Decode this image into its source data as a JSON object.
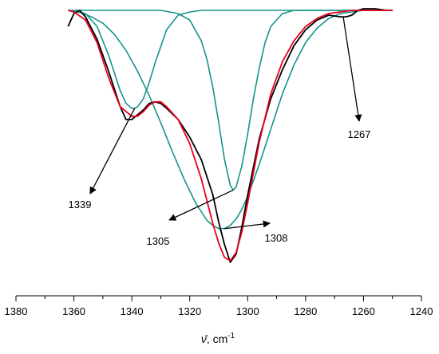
{
  "chart_data": {
    "type": "line",
    "title": "",
    "xlabel": "ν̄, cm⁻¹",
    "xlabel_symbol": "ν̄",
    "xlabel_unit": ", cm",
    "xlabel_exp": "-1",
    "ylabel": "",
    "xlim": [
      1380,
      1240
    ],
    "x_reversed": true,
    "y_axis_visible": false,
    "grid": false,
    "xticks": [
      1380,
      1360,
      1340,
      1320,
      1300,
      1280,
      1260,
      1240
    ],
    "colors": {
      "experimental": "#000000",
      "fit": "#e8001c",
      "components": "#15938a"
    },
    "series": [
      {
        "role": "experimental",
        "x": [
          1362,
          1360,
          1358,
          1356,
          1352,
          1348,
          1344,
          1342,
          1340,
          1338,
          1336,
          1334,
          1332,
          1330,
          1328,
          1324,
          1320,
          1316,
          1312,
          1310,
          1308,
          1306,
          1304,
          1302,
          1300,
          1296,
          1292,
          1288,
          1284,
          1280,
          1276,
          1272,
          1268,
          1266,
          1264,
          1262,
          1260,
          1256,
          1252,
          1250
        ],
        "values": [
          -0.1,
          -0.02,
          0.0,
          -0.04,
          -0.18,
          -0.38,
          -0.6,
          -0.68,
          -0.68,
          -0.65,
          -0.62,
          -0.58,
          -0.57,
          -0.58,
          -0.61,
          -0.68,
          -0.79,
          -0.93,
          -1.15,
          -1.32,
          -1.46,
          -1.57,
          -1.52,
          -1.35,
          -1.15,
          -0.8,
          -0.55,
          -0.37,
          -0.22,
          -0.12,
          -0.06,
          -0.03,
          -0.04,
          -0.04,
          -0.03,
          0.0,
          0.01,
          0.01,
          0.0,
          0.0
        ]
      },
      {
        "role": "fit",
        "x": [
          1362,
          1360,
          1356,
          1352,
          1348,
          1344,
          1340,
          1338,
          1336,
          1334,
          1332,
          1330,
          1328,
          1324,
          1320,
          1316,
          1312,
          1310,
          1308,
          1306,
          1304,
          1302,
          1300,
          1296,
          1292,
          1288,
          1284,
          1280,
          1276,
          1272,
          1268,
          1264,
          1260,
          1256,
          1250
        ],
        "values": [
          0.0,
          -0.01,
          -0.06,
          -0.2,
          -0.42,
          -0.6,
          -0.66,
          -0.66,
          -0.63,
          -0.59,
          -0.57,
          -0.57,
          -0.6,
          -0.68,
          -0.83,
          -1.05,
          -1.33,
          -1.45,
          -1.54,
          -1.56,
          -1.51,
          -1.38,
          -1.2,
          -0.82,
          -0.52,
          -0.32,
          -0.19,
          -0.1,
          -0.05,
          -0.02,
          -0.01,
          0.0,
          0.0,
          0.0,
          0.0
        ]
      },
      {
        "role": "component",
        "peak": 1339,
        "x": [
          1362,
          1356,
          1352,
          1348,
          1344,
          1342,
          1340,
          1339,
          1338,
          1336,
          1334,
          1332,
          1328,
          1324,
          1320,
          1316,
          1310,
          1300,
          1290,
          1280,
          1270,
          1260,
          1250
        ],
        "values": [
          0.0,
          -0.02,
          -0.1,
          -0.28,
          -0.5,
          -0.58,
          -0.61,
          -0.61,
          -0.6,
          -0.55,
          -0.45,
          -0.33,
          -0.12,
          -0.03,
          -0.01,
          0.0,
          0.0,
          0.0,
          0.0,
          0.0,
          0.0,
          0.0,
          0.0
        ]
      },
      {
        "role": "component",
        "peak": 1305,
        "x": [
          1362,
          1340,
          1330,
          1324,
          1320,
          1316,
          1314,
          1312,
          1310,
          1308,
          1306,
          1305,
          1304,
          1302,
          1300,
          1298,
          1296,
          1294,
          1292,
          1288,
          1284,
          1280,
          1270,
          1260,
          1250
        ],
        "values": [
          0.0,
          0.0,
          0.0,
          -0.02,
          -0.06,
          -0.19,
          -0.31,
          -0.48,
          -0.7,
          -0.93,
          -1.09,
          -1.12,
          -1.1,
          -0.97,
          -0.77,
          -0.55,
          -0.36,
          -0.2,
          -0.1,
          -0.02,
          0.0,
          0.0,
          0.0,
          0.0,
          0.0
        ]
      },
      {
        "role": "component",
        "peak": 1308,
        "x": [
          1362,
          1358,
          1354,
          1350,
          1346,
          1342,
          1338,
          1334,
          1330,
          1326,
          1322,
          1318,
          1314,
          1312,
          1310,
          1308,
          1306,
          1304,
          1302,
          1300,
          1296,
          1292,
          1288,
          1284,
          1280,
          1276,
          1272,
          1268,
          1264,
          1260,
          1256,
          1250
        ],
        "values": [
          0.0,
          -0.01,
          -0.04,
          -0.08,
          -0.15,
          -0.25,
          -0.38,
          -0.53,
          -0.7,
          -0.88,
          -1.05,
          -1.2,
          -1.31,
          -1.34,
          -1.36,
          -1.36,
          -1.34,
          -1.3,
          -1.24,
          -1.16,
          -0.96,
          -0.74,
          -0.52,
          -0.34,
          -0.2,
          -0.11,
          -0.05,
          -0.02,
          -0.01,
          0.0,
          0.0,
          0.0
        ]
      }
    ],
    "annotations": [
      {
        "label": "1339",
        "arrow_to_x": 1339,
        "arrow_to_y": -0.61
      },
      {
        "label": "1305",
        "arrow_to_x": 1305,
        "arrow_to_y": -1.12
      },
      {
        "label": "1308",
        "arrow_to_x": 1308,
        "arrow_to_y": -1.36
      },
      {
        "label": "1267",
        "arrow_to_x": 1267,
        "arrow_to_y": -0.04
      }
    ]
  }
}
